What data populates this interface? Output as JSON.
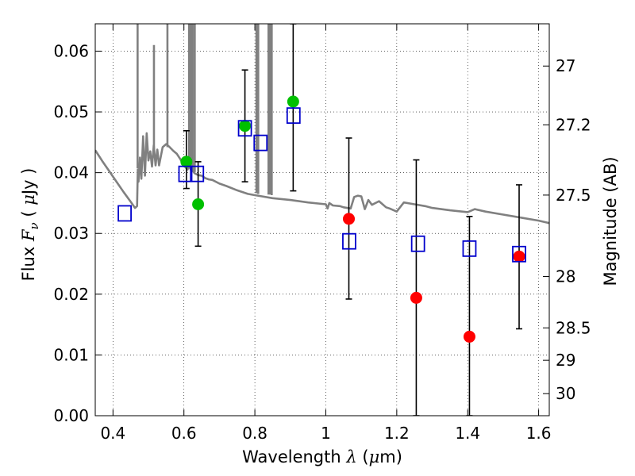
{
  "chart_data": {
    "type": "scatter",
    "xlabel": {
      "text": "Wavelength",
      "symbol": "λ",
      "unit_open": "(",
      "unit_mu": "μ",
      "unit_rest": "m)"
    },
    "ylabel": {
      "text": "Flux",
      "symbol": "F",
      "sub": "ν",
      "unit_open": "(",
      "unit_mu": "μ",
      "unit_rest": "Jy )"
    },
    "y2label": "Magnitude (AB)",
    "xlim": [
      0.35,
      1.63
    ],
    "ylim": [
      0.0,
      0.0645
    ],
    "grid": true,
    "x_ticks": [
      {
        "value": 0.4,
        "label": "0.4"
      },
      {
        "value": 0.6,
        "label": "0.6"
      },
      {
        "value": 0.8,
        "label": "0.8"
      },
      {
        "value": 1.0,
        "label": "1"
      },
      {
        "value": 1.2,
        "label": "1.2"
      },
      {
        "value": 1.4,
        "label": "1.4"
      },
      {
        "value": 1.6,
        "label": "1.6"
      }
    ],
    "y_ticks": [
      {
        "value": 0.0,
        "label": "0.00"
      },
      {
        "value": 0.01,
        "label": "0.01"
      },
      {
        "value": 0.02,
        "label": "0.02"
      },
      {
        "value": 0.03,
        "label": "0.03"
      },
      {
        "value": 0.04,
        "label": "0.04"
      },
      {
        "value": 0.05,
        "label": "0.05"
      },
      {
        "value": 0.06,
        "label": "0.06"
      }
    ],
    "y2_ticks": [
      {
        "mag": 27,
        "label": "27"
      },
      {
        "mag": 27.2,
        "label": "27.2"
      },
      {
        "mag": 27.5,
        "label": "27.5"
      },
      {
        "mag": 28,
        "label": "28"
      },
      {
        "mag": 28.5,
        "label": "28.5"
      },
      {
        "mag": 29,
        "label": "29"
      },
      {
        "mag": 30,
        "label": "30"
      }
    ],
    "colors": {
      "model": "#808080",
      "green": "#00c000",
      "red": "#ff0000",
      "blue": "#0000cc",
      "error": "#000000"
    },
    "series": [
      {
        "name": "model-sed",
        "kind": "line",
        "x": [
          0.35,
          0.37,
          0.39,
          0.41,
          0.43,
          0.45,
          0.462,
          0.468,
          0.47,
          0.472,
          0.476,
          0.48,
          0.485,
          0.49,
          0.495,
          0.5,
          0.505,
          0.51,
          0.515,
          0.52,
          0.525,
          0.53,
          0.54,
          0.55,
          0.56,
          0.57,
          0.58,
          0.59,
          0.6,
          0.61,
          0.615,
          0.62,
          0.625,
          0.63,
          0.64,
          0.65,
          0.66,
          0.67,
          0.68,
          0.7,
          0.72,
          0.75,
          0.78,
          0.8,
          0.82,
          0.85,
          0.9,
          0.95,
          1.0,
          1.005,
          1.01,
          1.02,
          1.04,
          1.05,
          1.07,
          1.08,
          1.09,
          1.1,
          1.11,
          1.12,
          1.13,
          1.15,
          1.17,
          1.18,
          1.2,
          1.22,
          1.25,
          1.28,
          1.3,
          1.35,
          1.4,
          1.42,
          1.45,
          1.5,
          1.55,
          1.6,
          1.63
        ],
        "y": [
          0.0437,
          0.0419,
          0.0402,
          0.0385,
          0.0368,
          0.0352,
          0.0342,
          0.0345,
          0.0405,
          0.0385,
          0.0425,
          0.039,
          0.046,
          0.0395,
          0.0465,
          0.042,
          0.0435,
          0.041,
          0.0445,
          0.0412,
          0.0438,
          0.0412,
          0.0442,
          0.0447,
          0.0442,
          0.0436,
          0.0431,
          0.0422,
          0.0412,
          0.0405,
          0.0411,
          0.0404,
          0.0403,
          0.0399,
          0.0396,
          0.0395,
          0.0391,
          0.0389,
          0.0388,
          0.0382,
          0.0378,
          0.0371,
          0.0365,
          0.0363,
          0.0361,
          0.0358,
          0.0355,
          0.0351,
          0.0348,
          0.0341,
          0.035,
          0.0346,
          0.0345,
          0.0343,
          0.0341,
          0.036,
          0.0362,
          0.0361,
          0.034,
          0.0355,
          0.0347,
          0.0353,
          0.0343,
          0.0341,
          0.0336,
          0.0351,
          0.0348,
          0.0345,
          0.0342,
          0.0338,
          0.0335,
          0.034,
          0.0336,
          0.0331,
          0.0326,
          0.0321,
          0.0317
        ]
      },
      {
        "name": "model-emission-lines",
        "kind": "spikes",
        "lines": [
          {
            "x": 0.4694,
            "y0": 0.0407,
            "y1": 0.0645
          },
          {
            "x": 0.5155,
            "y0": 0.0428,
            "y1": 0.061
          },
          {
            "x": 0.5535,
            "y0": 0.0442,
            "y1": 0.0645
          },
          {
            "x": 0.6145,
            "y0": 0.0409,
            "y1": 0.0645
          },
          {
            "x": 0.6195,
            "y0": 0.0405,
            "y1": 0.0645
          },
          {
            "x": 0.6245,
            "y0": 0.0403,
            "y1": 0.0645
          },
          {
            "x": 0.6305,
            "y0": 0.0401,
            "y1": 0.0645
          },
          {
            "x": 0.8045,
            "y0": 0.0366,
            "y1": 0.0645
          },
          {
            "x": 0.8095,
            "y0": 0.0365,
            "y1": 0.0645
          },
          {
            "x": 0.8385,
            "y0": 0.0364,
            "y1": 0.0645
          },
          {
            "x": 0.8435,
            "y0": 0.0364,
            "y1": 0.0645
          },
          {
            "x": 0.8475,
            "y0": 0.0363,
            "y1": 0.0645
          }
        ]
      },
      {
        "name": "observed-green",
        "kind": "points",
        "x": [
          0.607,
          0.64,
          0.772,
          0.908
        ],
        "y": [
          0.0418,
          0.0348,
          0.0477,
          0.0517
        ],
        "err_low": [
          0.0374,
          0.0279,
          0.0385,
          0.037
        ],
        "err_high": [
          0.0469,
          0.0418,
          0.0569,
          0.0645
        ]
      },
      {
        "name": "observed-red",
        "kind": "points",
        "x": [
          1.065,
          1.255,
          1.405,
          1.545
        ],
        "y": [
          0.0324,
          0.0194,
          0.013,
          0.0262
        ],
        "err_low": [
          0.0192,
          0.0,
          0.0,
          0.0143
        ],
        "err_high": [
          0.0457,
          0.0421,
          0.0328,
          0.038
        ]
      },
      {
        "name": "model-photometry",
        "kind": "squares",
        "x": [
          0.433,
          0.604,
          0.637,
          0.772,
          0.816,
          0.909,
          1.066,
          1.26,
          1.405,
          1.545
        ],
        "y": [
          0.0333,
          0.0398,
          0.0398,
          0.0473,
          0.0449,
          0.0494,
          0.0287,
          0.0283,
          0.0275,
          0.0266
        ]
      }
    ]
  }
}
